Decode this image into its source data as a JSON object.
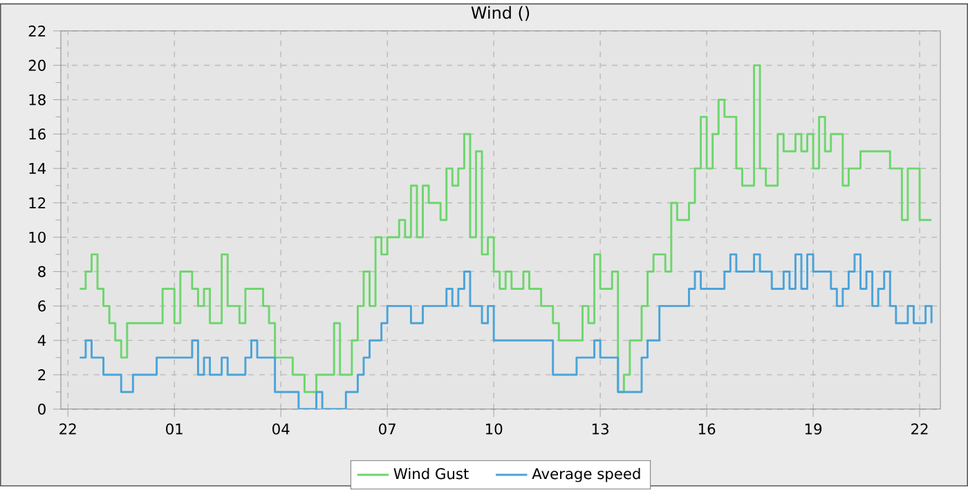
{
  "chart_data": {
    "type": "step",
    "title": "Wind ()",
    "categories": [
      "22",
      null,
      null,
      null,
      null,
      null,
      null,
      null,
      null,
      null,
      null,
      null,
      null,
      null,
      null,
      null,
      null,
      null,
      "01",
      null,
      null,
      null,
      null,
      null,
      null,
      null,
      null,
      null,
      null,
      null,
      null,
      null,
      null,
      null,
      null,
      null,
      "04",
      null,
      null,
      null,
      null,
      null,
      null,
      null,
      null,
      null,
      null,
      null,
      null,
      null,
      null,
      null,
      null,
      null,
      "07",
      null,
      null,
      null,
      null,
      null,
      null,
      null,
      null,
      null,
      null,
      null,
      null,
      null,
      null,
      null,
      null,
      null,
      "10",
      null,
      null,
      null,
      null,
      null,
      null,
      null,
      null,
      null,
      null,
      null,
      null,
      null,
      null,
      null,
      null,
      null,
      "13",
      null,
      null,
      null,
      null,
      null,
      null,
      null,
      null,
      null,
      null,
      null,
      null,
      null,
      null,
      null,
      null,
      null,
      "16",
      null,
      null,
      null,
      null,
      null,
      null,
      null,
      null,
      null,
      null,
      null,
      null,
      null,
      null,
      null,
      null,
      null,
      "19",
      null,
      null,
      null,
      null,
      null,
      null,
      null,
      null,
      null,
      null,
      null,
      null,
      null,
      null,
      null,
      null,
      null,
      "22",
      null,
      null
    ],
    "ylim": [
      0,
      22
    ],
    "yticks": [
      0,
      2,
      4,
      6,
      8,
      10,
      12,
      14,
      16,
      18,
      20,
      22
    ],
    "grid": true,
    "legend": "bottom",
    "marker": "none",
    "series": [
      {
        "name": "Wind Gust",
        "color": "#6dd66d",
        "values": [
          null,
          null,
          7,
          8,
          9,
          7,
          6,
          5,
          4,
          3,
          5,
          5,
          5,
          5,
          5,
          5,
          7,
          7,
          5,
          8,
          8,
          7,
          6,
          7,
          5,
          5,
          9,
          6,
          6,
          5,
          7,
          7,
          7,
          6,
          5,
          3,
          3,
          3,
          2,
          2,
          1,
          1,
          2,
          2,
          2,
          5,
          2,
          2,
          4,
          6,
          8,
          6,
          10,
          9,
          10,
          10,
          11,
          10,
          13,
          10,
          13,
          12,
          12,
          11,
          14,
          13,
          14,
          16,
          10,
          15,
          9,
          10,
          8,
          7,
          8,
          7,
          7,
          8,
          7,
          7,
          6,
          6,
          5,
          4,
          4,
          4,
          4,
          6,
          5,
          9,
          7,
          7,
          8,
          1,
          2,
          4,
          4,
          6,
          8,
          9,
          9,
          8,
          12,
          11,
          11,
          12,
          14,
          17,
          14,
          16,
          18,
          17,
          17,
          14,
          13,
          13,
          20,
          14,
          13,
          13,
          16,
          15,
          15,
          16,
          15,
          16,
          14,
          17,
          15,
          16,
          16,
          13,
          14,
          14,
          15,
          15,
          15,
          15,
          15,
          14,
          14,
          11,
          14,
          14,
          11,
          11,
          11
        ]
      },
      {
        "name": "Average speed",
        "color": "#4aa3d9",
        "values": [
          null,
          null,
          3,
          4,
          3,
          3,
          2,
          2,
          2,
          1,
          1,
          2,
          2,
          2,
          2,
          3,
          3,
          3,
          3,
          3,
          3,
          4,
          2,
          3,
          2,
          2,
          3,
          2,
          2,
          2,
          3,
          4,
          3,
          3,
          3,
          1,
          1,
          1,
          1,
          0,
          0,
          0,
          1,
          0,
          0,
          0,
          0,
          1,
          1,
          2,
          3,
          4,
          4,
          5,
          6,
          6,
          6,
          6,
          5,
          5,
          6,
          6,
          6,
          6,
          7,
          6,
          7,
          8,
          6,
          6,
          5,
          6,
          4,
          4,
          4,
          4,
          4,
          4,
          4,
          4,
          4,
          4,
          2,
          2,
          2,
          2,
          3,
          3,
          3,
          4,
          3,
          3,
          3,
          1,
          1,
          1,
          1,
          3,
          4,
          4,
          6,
          6,
          6,
          6,
          6,
          7,
          8,
          7,
          7,
          7,
          7,
          8,
          9,
          8,
          8,
          8,
          9,
          8,
          8,
          7,
          7,
          8,
          7,
          9,
          7,
          9,
          8,
          8,
          8,
          7,
          6,
          7,
          8,
          9,
          7,
          8,
          6,
          7,
          8,
          6,
          5,
          5,
          6,
          5,
          5,
          6,
          5
        ]
      }
    ]
  }
}
